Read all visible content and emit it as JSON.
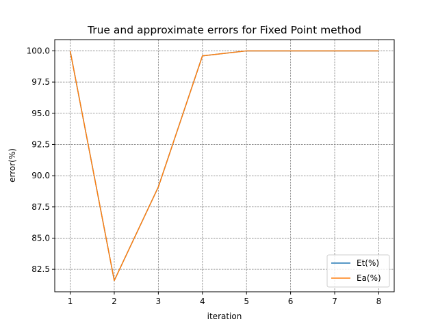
{
  "chart_data": {
    "type": "line",
    "title": "True and approximate errors for Fixed Point method",
    "xlabel": "iteration",
    "ylabel": "error(%)",
    "x": [
      1,
      2,
      3,
      4,
      5,
      6,
      7,
      8
    ],
    "xlim": [
      0.65,
      8.35
    ],
    "ylim": [
      80.7,
      100.9
    ],
    "xticks": [
      1,
      2,
      3,
      4,
      5,
      6,
      7,
      8
    ],
    "yticks": [
      82.5,
      85.0,
      87.5,
      90.0,
      92.5,
      95.0,
      97.5,
      100.0
    ],
    "ytick_labels": [
      "82.5",
      "85.0",
      "87.5",
      "90.0",
      "92.5",
      "95.0",
      "97.5",
      "100.0"
    ],
    "grid": true,
    "legend_position": "bottom-right",
    "series": [
      {
        "name": "Et(%)",
        "color": "#1f77b4",
        "values": [
          100.0,
          81.6,
          89.1,
          99.6,
          100.0,
          100.0,
          100.0,
          100.0
        ]
      },
      {
        "name": "Ea(%)",
        "color": "#ff7f0e",
        "values": [
          100.0,
          81.6,
          89.1,
          99.6,
          100.0,
          100.0,
          100.0,
          100.0
        ]
      }
    ]
  }
}
